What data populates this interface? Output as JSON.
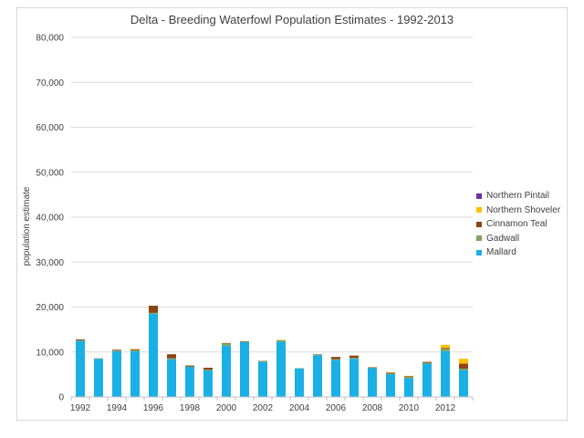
{
  "chart_data": {
    "type": "bar",
    "stacked": true,
    "title": "Delta - Breeding Waterfowl Population Estimates - 1992-2013",
    "xlabel": "",
    "ylabel": "population estimate",
    "ylim": [
      0,
      80000
    ],
    "yticks": [
      "0",
      "10,000",
      "20,000",
      "30,000",
      "40,000",
      "50,000",
      "60,000",
      "70,000",
      "80,000"
    ],
    "categories": [
      "1992",
      "1993",
      "1994",
      "1995",
      "1996",
      "1997",
      "1998",
      "1999",
      "2000",
      "2001",
      "2002",
      "2003",
      "2004",
      "2005",
      "2006",
      "2007",
      "2008",
      "2009",
      "2010",
      "2011",
      "2012",
      "2013"
    ],
    "x_tick_labels": [
      "1992",
      "",
      "1994",
      "",
      "1996",
      "",
      "1998",
      "",
      "2000",
      "",
      "2002",
      "",
      "2004",
      "",
      "2006",
      "",
      "2008",
      "",
      "2010",
      "",
      "2012",
      ""
    ],
    "grid": true,
    "legend_position": "right",
    "series": [
      {
        "name": "Mallard",
        "color": "#1ab0e6",
        "values": [
          12500,
          8500,
          10200,
          10200,
          18500,
          8400,
          6700,
          5900,
          11400,
          12200,
          7800,
          12300,
          6300,
          9300,
          8200,
          8500,
          6400,
          5100,
          4200,
          7400,
          10200,
          6000
        ]
      },
      {
        "name": "Gadwall",
        "color": "#7fa35c",
        "values": [
          100,
          100,
          100,
          200,
          200,
          200,
          100,
          200,
          500,
          100,
          100,
          300,
          100,
          100,
          200,
          200,
          100,
          100,
          200,
          200,
          500,
          300
        ]
      },
      {
        "name": "Cinnamon Teal",
        "color": "#8b4513",
        "values": [
          200,
          0,
          200,
          200,
          1600,
          900,
          200,
          400,
          100,
          100,
          100,
          0,
          0,
          100,
          500,
          500,
          100,
          200,
          200,
          200,
          200,
          1100
        ]
      },
      {
        "name": "Northern Shoveler",
        "color": "#ffc000",
        "values": [
          0,
          0,
          0,
          100,
          0,
          0,
          0,
          0,
          0,
          0,
          0,
          100,
          0,
          0,
          0,
          0,
          0,
          100,
          100,
          0,
          700,
          1100
        ]
      },
      {
        "name": "Northern Pintail",
        "color": "#7030a0",
        "values": [
          0,
          0,
          0,
          0,
          0,
          0,
          0,
          0,
          0,
          0,
          0,
          0,
          0,
          0,
          0,
          0,
          0,
          0,
          0,
          0,
          0,
          0
        ]
      }
    ]
  }
}
